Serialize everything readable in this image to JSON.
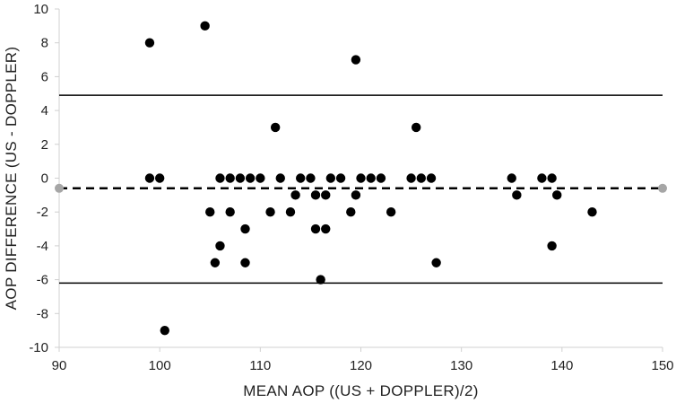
{
  "chart_data": {
    "type": "scatter",
    "title": "",
    "xlabel": "MEAN AOP ((US + DOPPLER)/2)",
    "ylabel": "AOP DIFFERENCE (US - DOPPLER)",
    "xlim": [
      90,
      150
    ],
    "ylim": [
      -10,
      10
    ],
    "x_ticks": [
      90,
      100,
      110,
      120,
      130,
      140,
      150
    ],
    "y_ticks": [
      -10,
      -8,
      -6,
      -4,
      -2,
      0,
      2,
      4,
      6,
      8,
      10
    ],
    "grid": false,
    "legend": "none",
    "reference_lines": [
      {
        "kind": "upper-limit-of-agreement",
        "y": 4.9,
        "style": "solid"
      },
      {
        "kind": "mean-difference",
        "y": -0.6,
        "style": "dashed",
        "endpoint_markers": true
      },
      {
        "kind": "lower-limit-of-agreement",
        "y": -6.2,
        "style": "solid"
      }
    ],
    "points": [
      {
        "x": 99,
        "y": 8
      },
      {
        "x": 104.5,
        "y": 9
      },
      {
        "x": 119.5,
        "y": 7
      },
      {
        "x": 111.5,
        "y": 3
      },
      {
        "x": 125.5,
        "y": 3
      },
      {
        "x": 99,
        "y": 0
      },
      {
        "x": 100,
        "y": 0
      },
      {
        "x": 106,
        "y": 0
      },
      {
        "x": 107,
        "y": 0
      },
      {
        "x": 108,
        "y": 0
      },
      {
        "x": 109,
        "y": 0
      },
      {
        "x": 110,
        "y": 0
      },
      {
        "x": 112,
        "y": 0
      },
      {
        "x": 114,
        "y": 0
      },
      {
        "x": 115,
        "y": 0
      },
      {
        "x": 117,
        "y": 0
      },
      {
        "x": 118,
        "y": 0
      },
      {
        "x": 120,
        "y": 0
      },
      {
        "x": 121,
        "y": 0
      },
      {
        "x": 122,
        "y": 0
      },
      {
        "x": 125,
        "y": 0
      },
      {
        "x": 126,
        "y": 0
      },
      {
        "x": 127,
        "y": 0
      },
      {
        "x": 135,
        "y": 0
      },
      {
        "x": 138,
        "y": 0
      },
      {
        "x": 139,
        "y": 0
      },
      {
        "x": 113.5,
        "y": -1
      },
      {
        "x": 115.5,
        "y": -1
      },
      {
        "x": 116.5,
        "y": -1
      },
      {
        "x": 119.5,
        "y": -1
      },
      {
        "x": 135.5,
        "y": -1
      },
      {
        "x": 139.5,
        "y": -1
      },
      {
        "x": 105,
        "y": -2
      },
      {
        "x": 107,
        "y": -2
      },
      {
        "x": 111,
        "y": -2
      },
      {
        "x": 113,
        "y": -2
      },
      {
        "x": 119,
        "y": -2
      },
      {
        "x": 123,
        "y": -2
      },
      {
        "x": 143,
        "y": -2
      },
      {
        "x": 108.5,
        "y": -3
      },
      {
        "x": 115.5,
        "y": -3
      },
      {
        "x": 116.5,
        "y": -3
      },
      {
        "x": 106,
        "y": -4
      },
      {
        "x": 139,
        "y": -4
      },
      {
        "x": 105.5,
        "y": -5
      },
      {
        "x": 108.5,
        "y": -5
      },
      {
        "x": 127.5,
        "y": -5
      },
      {
        "x": 116,
        "y": -6
      },
      {
        "x": 100.5,
        "y": -9
      }
    ],
    "colors": {
      "points": "#000000",
      "lines": "#000000",
      "axis": "#d0d0d0",
      "endpoint_marker": "#a6a6a6"
    }
  }
}
